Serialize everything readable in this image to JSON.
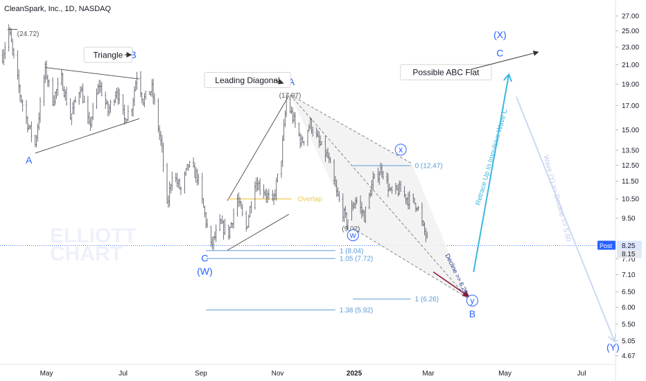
{
  "chart_data": {
    "type": "candlestick",
    "title": "CleanSpark, Inc., 1D, NASDAQ",
    "watermark": [
      "ELLIOTT",
      "CHART"
    ],
    "y_scale": "log",
    "ylim": [
      4.5,
      28.5
    ],
    "y_ticks": [
      "27.00",
      "25.00",
      "23.00",
      "21.00",
      "19.00",
      "17.00",
      "15.00",
      "13.50",
      "12.50",
      "11.50",
      "10.50",
      "9.50",
      "8.15",
      "7.70",
      "7.10",
      "6.50",
      "6.00",
      "5.50",
      "5.05",
      "4.67"
    ],
    "x_ticks": [
      {
        "label": "May",
        "date": "2024-05-01",
        "bold": false
      },
      {
        "label": "Jul",
        "date": "2024-07-01",
        "bold": false
      },
      {
        "label": "Sep",
        "date": "2024-09-01",
        "bold": false
      },
      {
        "label": "Nov",
        "date": "2024-11-01",
        "bold": false
      },
      {
        "label": "2025",
        "date": "2025-01-01",
        "bold": true
      },
      {
        "label": "Mar",
        "date": "2025-03-01",
        "bold": false
      },
      {
        "label": "May",
        "date": "2025-05-01",
        "bold": false
      },
      {
        "label": "Jul",
        "date": "2025-07-01",
        "bold": false
      }
    ],
    "xlim": [
      "2024-03-25",
      "2025-07-28"
    ],
    "price_path": [
      [
        "2024-03-27",
        22.0
      ],
      [
        "2024-04-01",
        25.2
      ],
      [
        "2024-04-04",
        22.5
      ],
      [
        "2024-04-10",
        18.0
      ],
      [
        "2024-04-16",
        15.5
      ],
      [
        "2024-04-22",
        13.9
      ],
      [
        "2024-04-26",
        17.0
      ],
      [
        "2024-04-30",
        20.5
      ],
      [
        "2024-05-06",
        17.5
      ],
      [
        "2024-05-13",
        19.5
      ],
      [
        "2024-05-20",
        16.0
      ],
      [
        "2024-05-28",
        18.8
      ],
      [
        "2024-06-04",
        15.2
      ],
      [
        "2024-06-12",
        19.0
      ],
      [
        "2024-06-19",
        16.5
      ],
      [
        "2024-06-26",
        18.5
      ],
      [
        "2024-07-02",
        15.8
      ],
      [
        "2024-07-08",
        17.0
      ],
      [
        "2024-07-12",
        20.0
      ],
      [
        "2024-07-17",
        17.5
      ],
      [
        "2024-07-24",
        18.5
      ],
      [
        "2024-08-01",
        13.5
      ],
      [
        "2024-08-05",
        10.0
      ],
      [
        "2024-08-09",
        12.0
      ],
      [
        "2024-08-16",
        11.0
      ],
      [
        "2024-08-22",
        12.5
      ],
      [
        "2024-08-29",
        11.8
      ],
      [
        "2024-09-03",
        10.0
      ],
      [
        "2024-09-09",
        8.2
      ],
      [
        "2024-09-16",
        9.2
      ],
      [
        "2024-09-23",
        8.8
      ],
      [
        "2024-09-30",
        10.5
      ],
      [
        "2024-10-07",
        9.0
      ],
      [
        "2024-10-14",
        11.5
      ],
      [
        "2024-10-21",
        11.0
      ],
      [
        "2024-10-28",
        10.2
      ],
      [
        "2024-11-04",
        13.0
      ],
      [
        "2024-11-08",
        17.5
      ],
      [
        "2024-11-13",
        16.0
      ],
      [
        "2024-11-20",
        14.0
      ],
      [
        "2024-11-27",
        15.5
      ],
      [
        "2024-12-04",
        14.0
      ],
      [
        "2024-12-11",
        13.0
      ],
      [
        "2024-12-18",
        10.8
      ],
      [
        "2024-12-26",
        9.3
      ],
      [
        "2025-01-02",
        10.5
      ],
      [
        "2025-01-09",
        9.6
      ],
      [
        "2025-01-16",
        11.5
      ],
      [
        "2025-01-23",
        12.3
      ],
      [
        "2025-01-30",
        10.8
      ],
      [
        "2025-02-06",
        11.0
      ],
      [
        "2025-02-13",
        10.5
      ],
      [
        "2025-02-20",
        10.2
      ],
      [
        "2025-02-25",
        9.0
      ],
      [
        "2025-03-03",
        8.15
      ]
    ],
    "price_labels": [
      {
        "text": "(24.72)",
        "date": "2024-04-01",
        "value": 24.72
      },
      {
        "text": "(17.97)",
        "date": "2024-11-11",
        "value": 17.97
      },
      {
        "text": "(9.02)",
        "date": "2024-12-31",
        "value": 9.02
      }
    ],
    "wave_labels": [
      {
        "text": "A",
        "date": "2024-04-17",
        "value": 12.6,
        "circled": false
      },
      {
        "text": "B",
        "date": "2024-07-09",
        "value": 21.7,
        "circled": false
      },
      {
        "text": "C",
        "date": "2024-09-04",
        "value": 7.6,
        "circled": false
      },
      {
        "text": "(W)",
        "date": "2024-09-04",
        "value": 7.1,
        "circled": false
      },
      {
        "text": "A",
        "date": "2024-11-12",
        "value": 18.9,
        "circled": false
      },
      {
        "text": "x",
        "date": "2025-02-07",
        "value": 13.3,
        "circled": true
      },
      {
        "text": "w",
        "date": "2024-12-31",
        "value": 8.55,
        "circled": true
      },
      {
        "text": "y",
        "date": "2025-04-05",
        "value": 6.1,
        "circled": true
      },
      {
        "text": "B",
        "date": "2025-04-05",
        "value": 5.7,
        "circled": false
      },
      {
        "text": "(X)",
        "date": "2025-04-27",
        "value": 24.1,
        "circled": false
      },
      {
        "text": "C",
        "date": "2025-04-27",
        "value": 21.9,
        "circled": false
      },
      {
        "text": "(Y)",
        "date": "2025-07-26",
        "value": 4.8,
        "circled": false
      }
    ],
    "fib_levels": [
      {
        "text": "1 (8.04)",
        "value": 8.04,
        "from": "2024-09-05",
        "to": "2024-12-17"
      },
      {
        "text": "1.05 (7.72)",
        "value": 7.72,
        "from": "2024-09-05",
        "to": "2024-12-17"
      },
      {
        "text": "1.38 (5.92)",
        "value": 5.92,
        "from": "2024-09-05",
        "to": "2024-12-17"
      },
      {
        "text": "0 (12.47)",
        "value": 12.47,
        "from": "2024-12-31",
        "to": "2025-02-15"
      },
      {
        "text": "1 (6.26)",
        "value": 6.26,
        "from": "2024-12-31",
        "to": "2025-02-15"
      }
    ],
    "annotations": [
      {
        "text": "Triangle",
        "date": "2024-06-19",
        "value": 22.1,
        "boxed": true
      },
      {
        "text": "Leading Diagonal",
        "date": "2024-10-08",
        "value": 19.4,
        "boxed": true
      },
      {
        "text": "Possible ABC Flat",
        "date": "2025-03-15",
        "value": 20.2,
        "boxed": true
      },
      {
        "text": "Overlap",
        "date": "2024-11-17",
        "value": 10.5,
        "boxed": false
      }
    ],
    "arrow_labels": {
      "decline_y": "Decline >> 6.26",
      "retrace": "Retrace Up In Impulsive Wave C",
      "wave_y": "Wave (Y) >> Decline >> 5.60"
    },
    "current_price": {
      "tag": "Post",
      "value": "8.25",
      "value_2": "8.15"
    },
    "colors": {
      "wave_label": "#2962ff",
      "fib": "#5b9bd5",
      "up_arrow": "#3db5e0",
      "down_arrow": "#c9daf1",
      "decline": "#8b1a3a",
      "overlap": "#f2c94c",
      "post_tag": "#2962ff",
      "watermark": "#eef1fa"
    }
  }
}
